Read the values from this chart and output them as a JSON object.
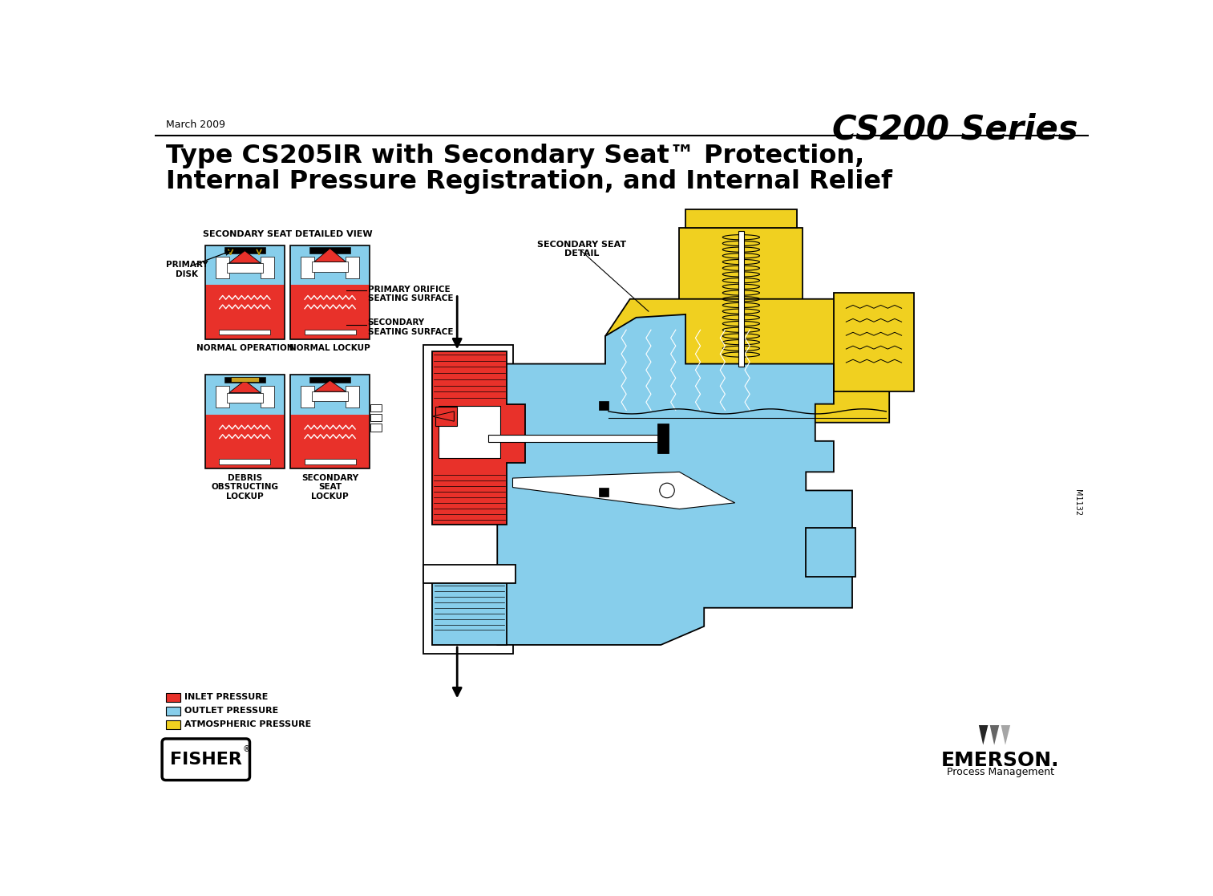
{
  "title_left": "March 2009",
  "title_right": "CS200 Series",
  "main_title_line1": "Type CS205IR with Secondary Seat™ Protection,",
  "main_title_line2": "Internal Pressure Registration, and Internal Relief",
  "legend_items": [
    {
      "label": "INLET PRESSURE",
      "color": "#E8312A"
    },
    {
      "label": "OUTLET PRESSURE",
      "color": "#87CEEB"
    },
    {
      "label": "ATMOSPHERIC PRESSURE",
      "color": "#F0D020"
    }
  ],
  "labels": {
    "primary_disk": "PRIMARY\nDISK",
    "secondary_seat_detail_view": "SECONDARY SEAT DETAILED VIEW",
    "normal_operation": "NORMAL OPERATION",
    "normal_lockup": "NORMAL LOCKUP",
    "debris_obstructing_lockup": "DEBRIS\nOBSTRUCTING\nLOCKUP",
    "secondary_seat_lockup": "SECONDARY\nSEAT\nLOCKUP",
    "primary_orifice_seating_surface": "PRIMARY ORIFICE\nSEATING SURFACE",
    "secondary_seating_surface": "SECONDARY\nSEATING SURFACE",
    "secondary_seat_detail": "SECONDARY SEAT\nDETAIL",
    "m1132": "M1132"
  },
  "colors": {
    "red": "#E8312A",
    "blue": "#87CEEB",
    "yellow": "#F0D020",
    "black": "#000000",
    "white": "#FFFFFF",
    "bg": "#FFFFFF"
  },
  "background_color": "#FFFFFF"
}
